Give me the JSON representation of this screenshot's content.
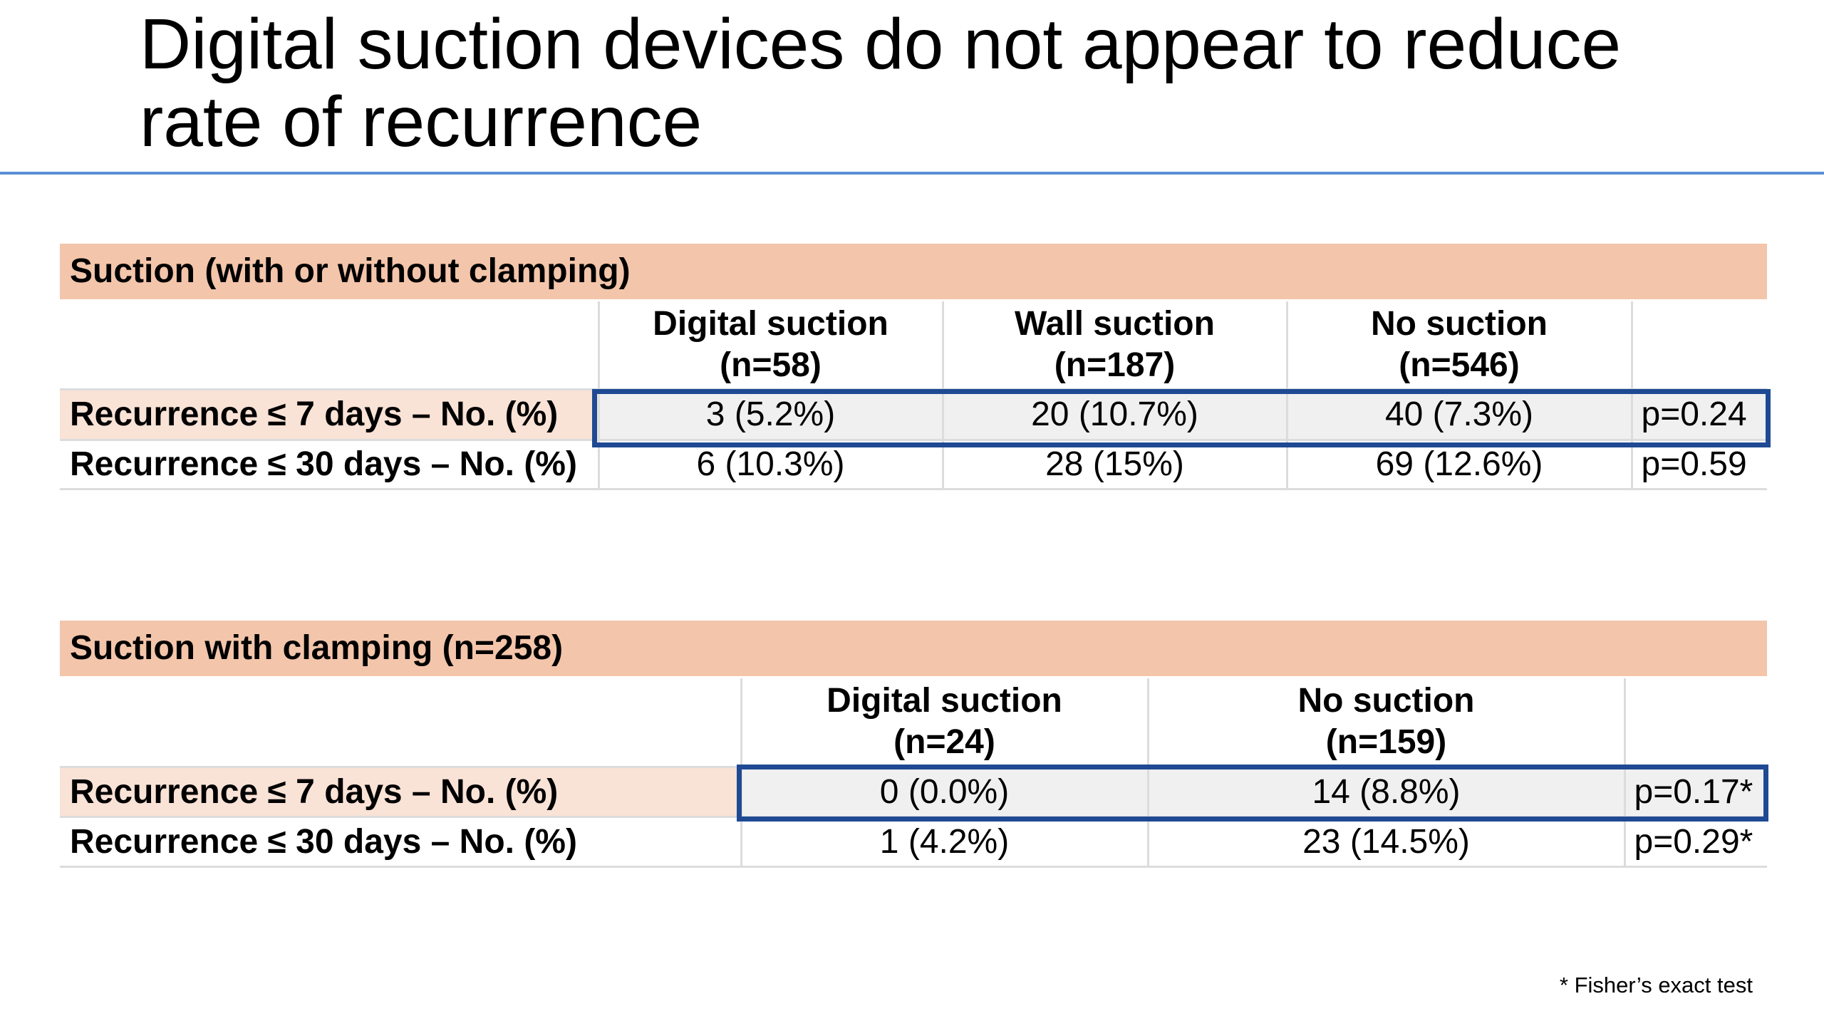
{
  "slide": {
    "title_line1": "Digital suction devices do not appear to reduce",
    "title_line2": "rate of recurrence",
    "footnote": "* Fisher’s exact test"
  },
  "table1": {
    "section_title": "Suction (with or without clamping)",
    "columns": [
      {
        "name": "Digital suction",
        "n": "(n=58)"
      },
      {
        "name": "Wall suction",
        "n": "(n=187)"
      },
      {
        "name": "No suction",
        "n": "(n=546)"
      }
    ],
    "rows": [
      {
        "label": "Recurrence ≤ 7 days – No. (%)",
        "cells": [
          "3 (5.2%)",
          "20 (10.7%)",
          "40 (7.3%)"
        ],
        "p": "p=0.24"
      },
      {
        "label": "Recurrence ≤ 30 days – No. (%)",
        "cells": [
          "6 (10.3%)",
          "28 (15%)",
          "69 (12.6%)"
        ],
        "p": "p=0.59"
      }
    ]
  },
  "table2": {
    "section_title": "Suction with clamping (n=258)",
    "columns": [
      {
        "name": "Digital suction",
        "n": "(n=24)"
      },
      {
        "name": "No suction",
        "n": "(n=159)"
      }
    ],
    "rows": [
      {
        "label": "Recurrence ≤ 7 days – No. (%)",
        "cells": [
          "0 (0.0%)",
          "14 (8.8%)"
        ],
        "p": "p=0.17*"
      },
      {
        "label": "Recurrence ≤ 30 days – No. (%)",
        "cells": [
          "1 (4.2%)",
          "23 (14.5%)"
        ],
        "p": "p=0.29*"
      }
    ]
  },
  "colors": {
    "section_header": "#f3c5aa",
    "highlight_label": "#f9e2d6",
    "highlight_row": "#f0f0f0",
    "highlight_border": "#1f4a93",
    "title_rule": "#5b8fd6"
  }
}
